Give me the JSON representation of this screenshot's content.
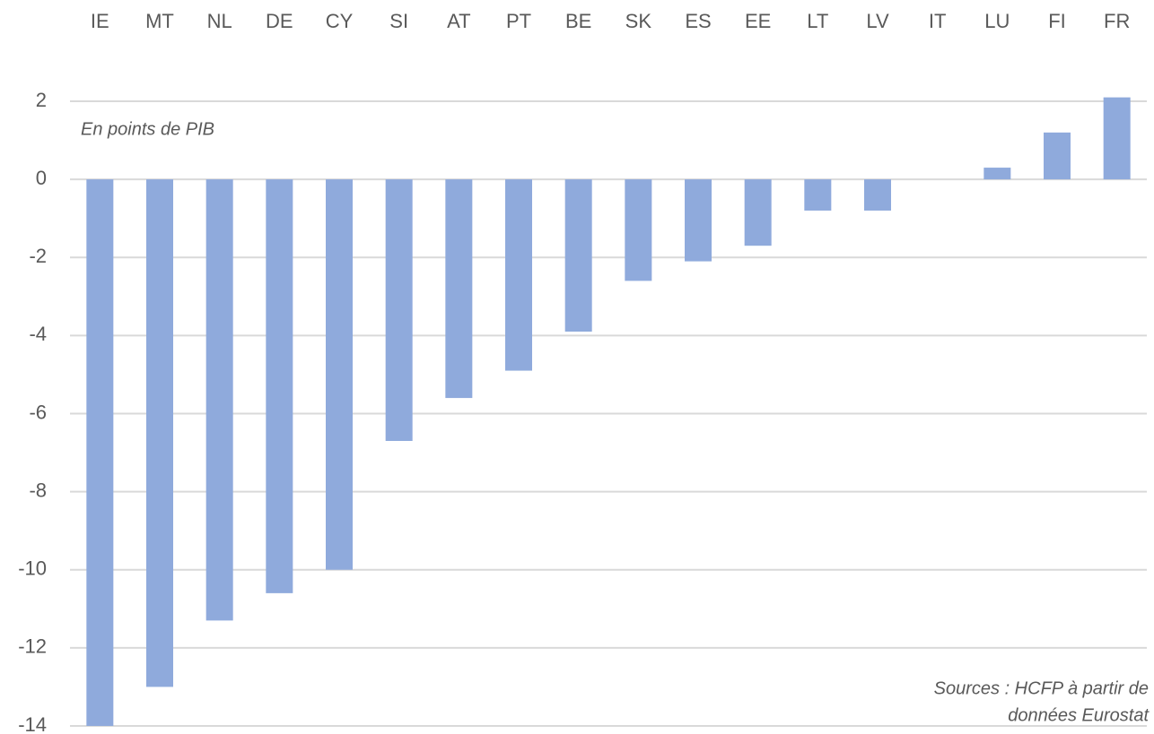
{
  "chart_data": {
    "type": "bar",
    "categories": [
      "IE",
      "MT",
      "NL",
      "DE",
      "CY",
      "SI",
      "AT",
      "PT",
      "BE",
      "SK",
      "ES",
      "EE",
      "LT",
      "LV",
      "IT",
      "LU",
      "FI",
      "FR"
    ],
    "values": [
      -14,
      -13,
      -11.3,
      -10.6,
      -10,
      -6.7,
      -5.6,
      -4.9,
      -3.9,
      -2.6,
      -2.1,
      -1.7,
      -0.8,
      -0.8,
      0,
      0.3,
      1.2,
      2.1
    ],
    "color": "#8faadc",
    "ylim": [
      -14,
      2
    ],
    "yticks": [
      -14,
      -12,
      -10,
      -8,
      -6,
      -4,
      -2,
      0,
      2
    ],
    "grid": true,
    "annotations": [
      "En points de PIB",
      "Sources : HCFP à partir de",
      "données Eurostat"
    ]
  }
}
